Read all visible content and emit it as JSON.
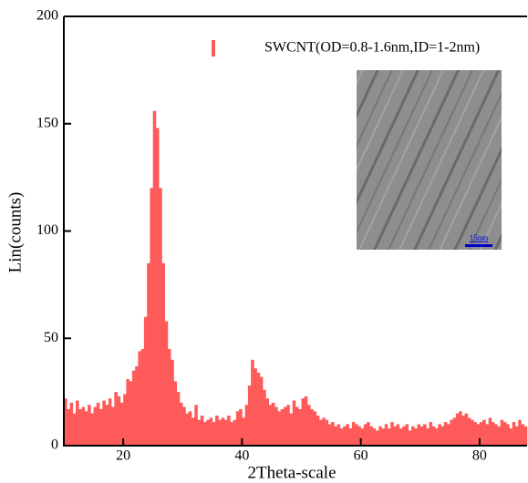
{
  "chart_data": {
    "type": "histogram",
    "ylabel": "Lin(counts)",
    "xlabel": "2Theta-scale",
    "series_name": "SWCNT(OD=0.8-1.6nm,ID=1-2nm)",
    "color": "#ff5a5a",
    "inset_scale_label": "15nm",
    "xlim": [
      10,
      88
    ],
    "ylim": [
      0,
      200
    ],
    "xticks": [
      20,
      40,
      60,
      80
    ],
    "yticks": [
      0,
      50,
      100,
      150,
      200
    ],
    "bins": [
      10,
      10.5,
      11,
      11.5,
      12,
      12.5,
      13,
      13.5,
      14,
      14.5,
      15,
      15.5,
      16,
      16.5,
      17,
      17.5,
      18,
      18.5,
      19,
      19.5,
      20,
      20.5,
      21,
      21.5,
      22,
      22.5,
      23,
      23.5,
      24,
      24.5,
      25,
      25.5,
      26,
      26.5,
      27,
      27.5,
      28,
      28.5,
      29,
      29.5,
      30,
      30.5,
      31,
      31.5,
      32,
      32.5,
      33,
      33.5,
      34,
      34.5,
      35,
      35.5,
      36,
      36.5,
      37,
      37.5,
      38,
      38.5,
      39,
      39.5,
      40,
      40.5,
      41,
      41.5,
      42,
      42.5,
      43,
      43.5,
      44,
      44.5,
      45,
      45.5,
      46,
      46.5,
      47,
      47.5,
      48,
      48.5,
      49,
      49.5,
      50,
      50.5,
      51,
      51.5,
      52,
      52.5,
      53,
      53.5,
      54,
      54.5,
      55,
      55.5,
      56,
      56.5,
      57,
      57.5,
      58,
      58.5,
      59,
      59.5,
      60,
      60.5,
      61,
      61.5,
      62,
      62.5,
      63,
      63.5,
      64,
      64.5,
      65,
      65.5,
      66,
      66.5,
      67,
      67.5,
      68,
      68.5,
      69,
      69.5,
      70,
      70.5,
      71,
      71.5,
      72,
      72.5,
      73,
      73.5,
      74,
      74.5,
      75,
      75.5,
      76,
      76.5,
      77,
      77.5,
      78,
      78.5,
      79,
      79.5,
      80,
      80.5,
      81,
      81.5,
      82,
      82.5,
      83,
      83.5,
      84,
      84.5,
      85,
      85.5,
      86,
      86.5,
      87,
      87.5,
      88
    ],
    "values": [
      22,
      17,
      20,
      15,
      21,
      17,
      18,
      16,
      19,
      15,
      18,
      20,
      17,
      21,
      19,
      22,
      18,
      25,
      23,
      20,
      24,
      31,
      30,
      35,
      37,
      44,
      45,
      60,
      85,
      120,
      156,
      148,
      120,
      85,
      58,
      45,
      40,
      30,
      25,
      20,
      18,
      15,
      16,
      13,
      19,
      12,
      14,
      11,
      12,
      13,
      11,
      14,
      12,
      13,
      12,
      14,
      11,
      12,
      16,
      17,
      13,
      19,
      28,
      40,
      36,
      34,
      32,
      26,
      22,
      19,
      20,
      18,
      16,
      17,
      18,
      19,
      15,
      21,
      18,
      17,
      22,
      23,
      19,
      17,
      16,
      14,
      12,
      13,
      12,
      10,
      11,
      9,
      10,
      8,
      9,
      10,
      8,
      11,
      10,
      9,
      8,
      10,
      11,
      9,
      8,
      7,
      9,
      8,
      10,
      8,
      11,
      9,
      10,
      8,
      9,
      10,
      7,
      9,
      8,
      10,
      9,
      10,
      8,
      11,
      9,
      8,
      10,
      9,
      11,
      10,
      12,
      13,
      15,
      16,
      14,
      15,
      13,
      12,
      11,
      10,
      11,
      12,
      10,
      13,
      11,
      10,
      9,
      12,
      11,
      10,
      8,
      11,
      9,
      12,
      10,
      9
    ]
  }
}
